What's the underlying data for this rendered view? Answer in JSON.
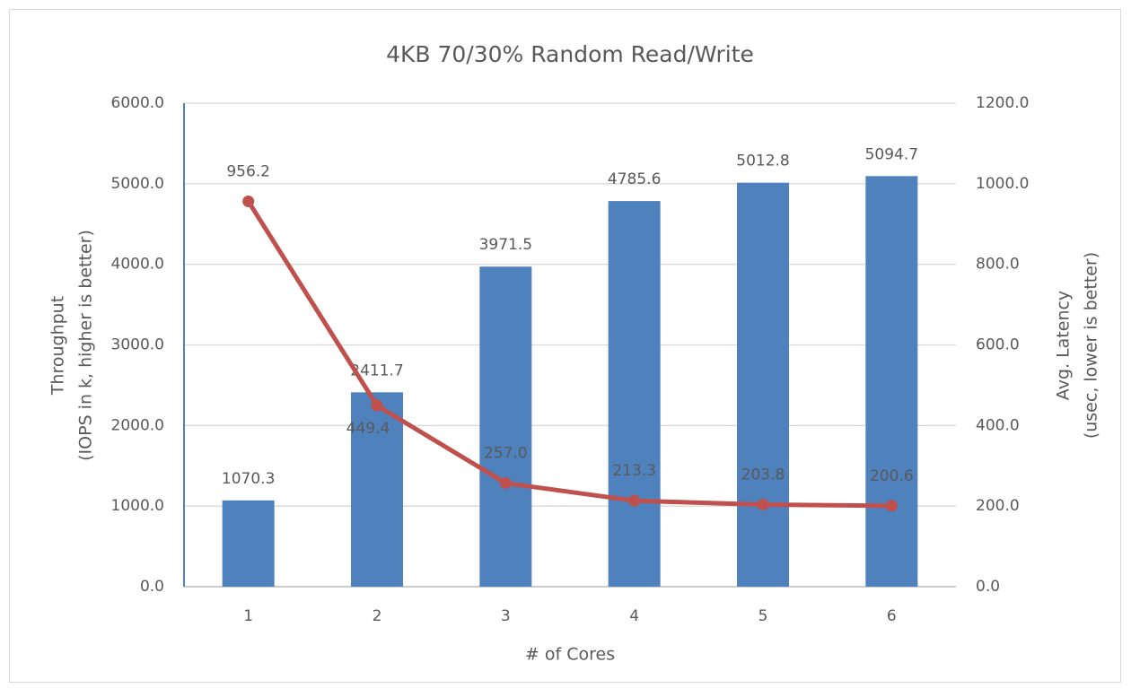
{
  "chart_data": {
    "type": "bar_line",
    "title": "4KB 70/30% Random Read/Write",
    "x_label": "# of Cores",
    "y_label": [
      "Throughput",
      "(IOPS in k, higher is better)"
    ],
    "y2_label": [
      "Avg. Latency",
      "(usec, lower is better)"
    ],
    "categories": [
      "1",
      "2",
      "3",
      "4",
      "5",
      "6"
    ],
    "series": [
      {
        "type": "bar",
        "color": "#4f81bd",
        "axis": "y",
        "values": [
          1070.3,
          2411.7,
          3971.5,
          4785.6,
          5012.8,
          5094.7
        ],
        "value_labels": [
          "1070.3",
          "2411.7",
          "3971.5",
          "4785.6",
          "5012.8",
          "5094.7"
        ]
      },
      {
        "type": "line",
        "color": "#c0504d",
        "axis": "y2",
        "values": [
          956.2,
          449.4,
          257.0,
          213.3,
          203.8,
          200.6
        ],
        "value_labels": [
          "956.2",
          "449.4",
          "257.0",
          "213.3",
          "203.8",
          "200.6"
        ]
      }
    ],
    "ylim": [
      0,
      6000
    ],
    "yticks": [
      {
        "value": 0,
        "label": "0.0"
      },
      {
        "value": 1000,
        "label": "1000.0"
      },
      {
        "value": 2000,
        "label": "2000.0"
      },
      {
        "value": 3000,
        "label": "3000.0"
      },
      {
        "value": 4000,
        "label": "4000.0"
      },
      {
        "value": 5000,
        "label": "5000.0"
      },
      {
        "value": 6000,
        "label": "6000.0"
      }
    ],
    "y2lim": [
      0,
      1200
    ],
    "y2ticks": [
      {
        "value": 0,
        "label": "0.0"
      },
      {
        "value": 200,
        "label": "200.0"
      },
      {
        "value": 400,
        "label": "400.0"
      },
      {
        "value": 600,
        "label": "600.0"
      },
      {
        "value": 800,
        "label": "800.0"
      },
      {
        "value": 1000,
        "label": "1000.0"
      },
      {
        "value": 1200,
        "label": "1200.0"
      }
    ],
    "grid": true
  }
}
